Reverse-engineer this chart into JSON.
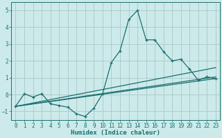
{
  "title": "",
  "xlabel": "Humidex (Indice chaleur)",
  "ylabel": "",
  "bg_color": "#cceaea",
  "grid_color": "#b0cccc",
  "line_color": "#1a6e6e",
  "xlim": [
    -0.5,
    23.5
  ],
  "ylim": [
    -1.5,
    5.5
  ],
  "xticks": [
    0,
    1,
    2,
    3,
    4,
    5,
    6,
    7,
    8,
    9,
    10,
    11,
    12,
    13,
    14,
    15,
    16,
    17,
    18,
    19,
    20,
    21,
    22,
    23
  ],
  "yticks": [
    -1,
    0,
    1,
    2,
    3,
    4,
    5
  ],
  "series1_x": [
    0,
    1,
    2,
    3,
    4,
    5,
    6,
    7,
    8,
    9,
    10,
    11,
    12,
    13,
    14,
    15,
    16,
    17,
    18,
    19,
    20,
    21,
    22,
    23
  ],
  "series1_y": [
    -0.7,
    0.05,
    -0.15,
    0.05,
    -0.55,
    -0.65,
    -0.75,
    -1.15,
    -1.3,
    -0.8,
    0.05,
    1.9,
    2.6,
    4.45,
    5.0,
    3.25,
    3.25,
    2.55,
    2.0,
    2.1,
    1.5,
    0.85,
    1.05,
    0.95
  ],
  "series2_x": [
    0,
    23
  ],
  "series2_y": [
    -0.7,
    1.6
  ],
  "series3_x": [
    0,
    23
  ],
  "series3_y": [
    -0.7,
    0.95
  ],
  "series4_x": [
    0,
    23
  ],
  "series4_y": [
    -0.7,
    1.05
  ]
}
